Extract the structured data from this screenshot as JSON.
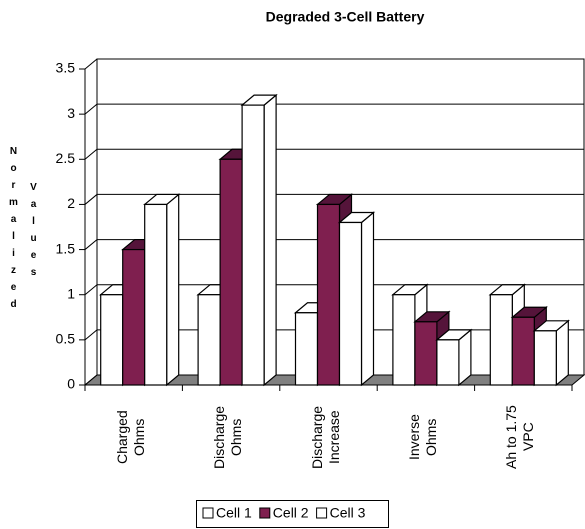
{
  "chart_data": {
    "type": "bar3d",
    "title": "Degraded 3-Cell Battery",
    "y_label": [
      "Normalized",
      "Values"
    ],
    "categories": [
      "Charged Ohms",
      "Discharge Ohms",
      "Discharge Increase",
      "Inverse Ohms",
      "Ah to 1.75 VPC"
    ],
    "series": [
      {
        "name": "Cell 1",
        "color": "#ffffff",
        "values": [
          1,
          1,
          0.8,
          1,
          1
        ]
      },
      {
        "name": "Cell 2",
        "color": "#7f1f4f",
        "values": [
          1.5,
          2.5,
          2,
          0.7,
          0.75
        ]
      },
      {
        "name": "Cell 3",
        "color": "#ffffff",
        "values": [
          2,
          3.1,
          1.8,
          0.5,
          0.6
        ]
      }
    ],
    "ylim": [
      0,
      3.5
    ],
    "yticks": [
      0,
      0.5,
      1,
      1.5,
      2,
      2.5,
      3,
      3.5
    ],
    "grid": true,
    "legend": "bottom"
  }
}
